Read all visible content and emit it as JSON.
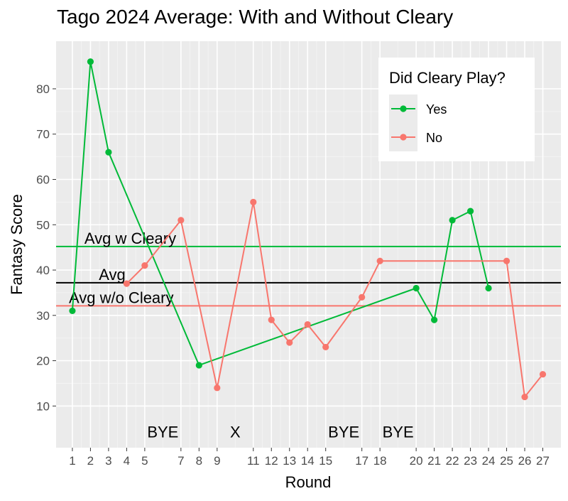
{
  "chart_data": {
    "type": "line",
    "title": "Tago 2024 Average: With and Without Cleary",
    "xlabel": "Round",
    "ylabel": "Fantasy Score",
    "xlim": [
      0.1,
      28.0
    ],
    "ylim": [
      0.8,
      90.5
    ],
    "x_ticks": [
      1,
      2,
      3,
      4,
      5,
      7,
      8,
      9,
      11,
      12,
      13,
      14,
      15,
      17,
      18,
      20,
      21,
      22,
      23,
      24,
      25,
      26,
      27
    ],
    "y_ticks": [
      10,
      20,
      30,
      40,
      50,
      60,
      70,
      80
    ],
    "grid": true,
    "legend": {
      "title": "Did Cleary Play?",
      "placement": "top-right",
      "entries": [
        {
          "label": "Yes",
          "color": "#00ba38"
        },
        {
          "label": "No",
          "color": "#f8766d"
        }
      ]
    },
    "series": [
      {
        "name": "Yes",
        "color": "#00ba38",
        "points": [
          [
            1,
            31
          ],
          [
            2,
            86
          ],
          [
            3,
            66
          ],
          [
            8,
            19
          ],
          [
            20,
            36
          ],
          [
            21,
            29
          ],
          [
            22,
            51
          ],
          [
            23,
            53
          ],
          [
            24,
            36
          ]
        ]
      },
      {
        "name": "No",
        "color": "#f8766d",
        "points": [
          [
            4,
            37
          ],
          [
            5,
            41
          ],
          [
            7,
            51
          ],
          [
            9,
            14
          ],
          [
            11,
            55
          ],
          [
            12,
            29
          ],
          [
            13,
            24
          ],
          [
            14,
            28
          ],
          [
            15,
            23
          ],
          [
            17,
            34
          ],
          [
            18,
            42
          ],
          [
            25,
            42
          ],
          [
            26,
            12
          ],
          [
            27,
            17
          ]
        ]
      }
    ],
    "hlines": [
      {
        "label": "Avg w Cleary",
        "y": 45.2,
        "color": "#00ba38",
        "label_x": 4.2
      },
      {
        "label": "Avg",
        "y": 37.2,
        "color": "#000000",
        "label_x": 3.2
      },
      {
        "label": "Avg w/o Cleary",
        "y": 32.1,
        "color": "#f8766d",
        "label_x": 3.7
      }
    ],
    "annotations": [
      {
        "text": "BYE",
        "x": 6,
        "y": 4.3
      },
      {
        "text": "X",
        "x": 10,
        "y": 4.3
      },
      {
        "text": "BYE",
        "x": 16,
        "y": 4.3
      },
      {
        "text": "BYE",
        "x": 19,
        "y": 4.3
      }
    ]
  }
}
